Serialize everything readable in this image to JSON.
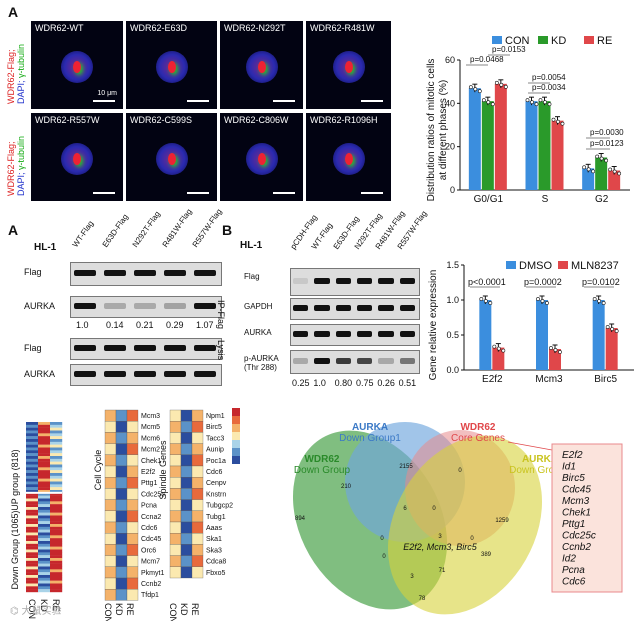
{
  "panel_top": {
    "letter": "A",
    "side_label_1": "WDR62-Flag; DAPI; γ-tubulin",
    "side_label_2": "WDR62-Flag; DAPI; γ-tubulin",
    "images_row1": [
      "WDR62-WT",
      "WDR62-E63D",
      "WDR62-N292T",
      "WDR62-R481W"
    ],
    "images_row2": [
      "WDR62-R557W",
      "WDR62-C599S",
      "WDR62-C806W",
      "WDR62-R1096H"
    ],
    "scale_label": "10 μm"
  },
  "chart_top": {
    "chart_data": {
      "type": "bar",
      "categories": [
        "G0/G1",
        "S",
        "G2"
      ],
      "series": [
        {
          "name": "CON",
          "values": [
            47,
            41,
            10
          ],
          "color": "#3b8ede"
        },
        {
          "name": "KD",
          "values": [
            41,
            41,
            15
          ],
          "color": "#2a9a2a"
        },
        {
          "name": "RE",
          "values": [
            49,
            32,
            9
          ],
          "color": "#e0474a"
        }
      ],
      "ylabel": "Distribution ratios of mitotic cells at different phases (%)",
      "ylim": [
        0,
        60
      ],
      "yticks": [
        "0",
        "20",
        "40",
        "60"
      ],
      "annotations": [
        "p=0.0153",
        "p=0.0468",
        "p=0.0054",
        "p=0.0034",
        "p=0.0030",
        "p=0.0123"
      ],
      "legend": "top"
    }
  },
  "panel_mid_left": {
    "letter": "A",
    "cell_line": "HL-1",
    "lanes": [
      "WT-Flag",
      "E63D-Flag",
      "N292T-Flag",
      "R481W-Flag",
      "R557W-Flag"
    ],
    "rows": [
      "Flag",
      "AURKA",
      "Flag",
      "AURKA"
    ],
    "quant": [
      "1.0",
      "0.14",
      "0.21",
      "0.29",
      "1.07"
    ],
    "group_labels": [
      "IP-Flag",
      "Lysis"
    ]
  },
  "panel_mid_right": {
    "letter": "B",
    "cell_line": "HL-1",
    "lanes": [
      "pCDH-Flag",
      "WT-Flag",
      "E63D-Flag",
      "N292T-Flag",
      "R481W-Flag",
      "R557W-Flag"
    ],
    "rows": [
      "Flag",
      "GAPDH",
      "AURKA",
      "p-AURKA (Thr 288)"
    ],
    "quant": [
      "0.25",
      "1.0",
      "0.80",
      "0.75",
      "0.26",
      "0.51"
    ]
  },
  "chart_mid": {
    "chart_data": {
      "type": "bar",
      "categories": [
        "E2f2",
        "Mcm3",
        "Birc5"
      ],
      "series": [
        {
          "name": "DMSO",
          "values": [
            1.0,
            1.0,
            1.0
          ],
          "color": "#3b8ede"
        },
        {
          "name": "MLN8237",
          "values": [
            0.32,
            0.3,
            0.6
          ],
          "color": "#e0474a"
        }
      ],
      "ylabel": "Gene relative expression",
      "ylim": [
        0,
        1.5
      ],
      "yticks": [
        "0.0",
        "0.5",
        "1.0",
        "1.5"
      ],
      "annotations": [
        "p<0.0001",
        "p=0.0002",
        "p=0.0102"
      ],
      "legend": "top"
    }
  },
  "heatmaps": {
    "groups": [
      "UP group (818)",
      "Down Group (1065)"
    ],
    "columns": [
      "CON",
      "KD",
      "RE"
    ],
    "cell_cycle_label": "Cell Cycle",
    "cell_cycle_genes": [
      "Mcm3",
      "Mcm5",
      "Mcm6",
      "Mcm2",
      "Chek1",
      "E2f2",
      "Pttg1",
      "Cdc25c",
      "Pcna",
      "Ccna2",
      "Cdc6",
      "Cdc45",
      "Orc6",
      "Mcm7",
      "Pkmyt1",
      "Ccnb2",
      "Tfdp1"
    ],
    "spindle_label": "Spindle Genes",
    "spindle_genes": [
      "Npm1",
      "Birc5",
      "Tacc3",
      "Aunip",
      "Poc1a",
      "Cdc6",
      "Cenpv",
      "Knstrn",
      "Tubgcp2",
      "Tubg1",
      "Aaas",
      "Ska1",
      "Ska3",
      "Cdca8",
      "Fbxo5"
    ]
  },
  "venn": {
    "labels": [
      "AURKA Down Group1",
      "WDR62 Core Genes",
      "WDR62 Down Group",
      "AURKA Down Group2"
    ],
    "counts": [
      "2155",
      "0",
      "210",
      "0",
      "6",
      "894",
      "3",
      "1259",
      "389",
      "0",
      "3",
      "71",
      "78",
      "0",
      "0"
    ],
    "center_text": "E2f2, Mcm3, Birc5",
    "gene_box": [
      "E2f2",
      "Id1",
      "Birc5",
      "Cdc45",
      "Mcm3",
      "Chek1",
      "Pttg1",
      "Cdc25c",
      "Ccnb2",
      "Id2",
      "Pcna",
      "Cdc6"
    ]
  },
  "watermark": "大鼠实验"
}
